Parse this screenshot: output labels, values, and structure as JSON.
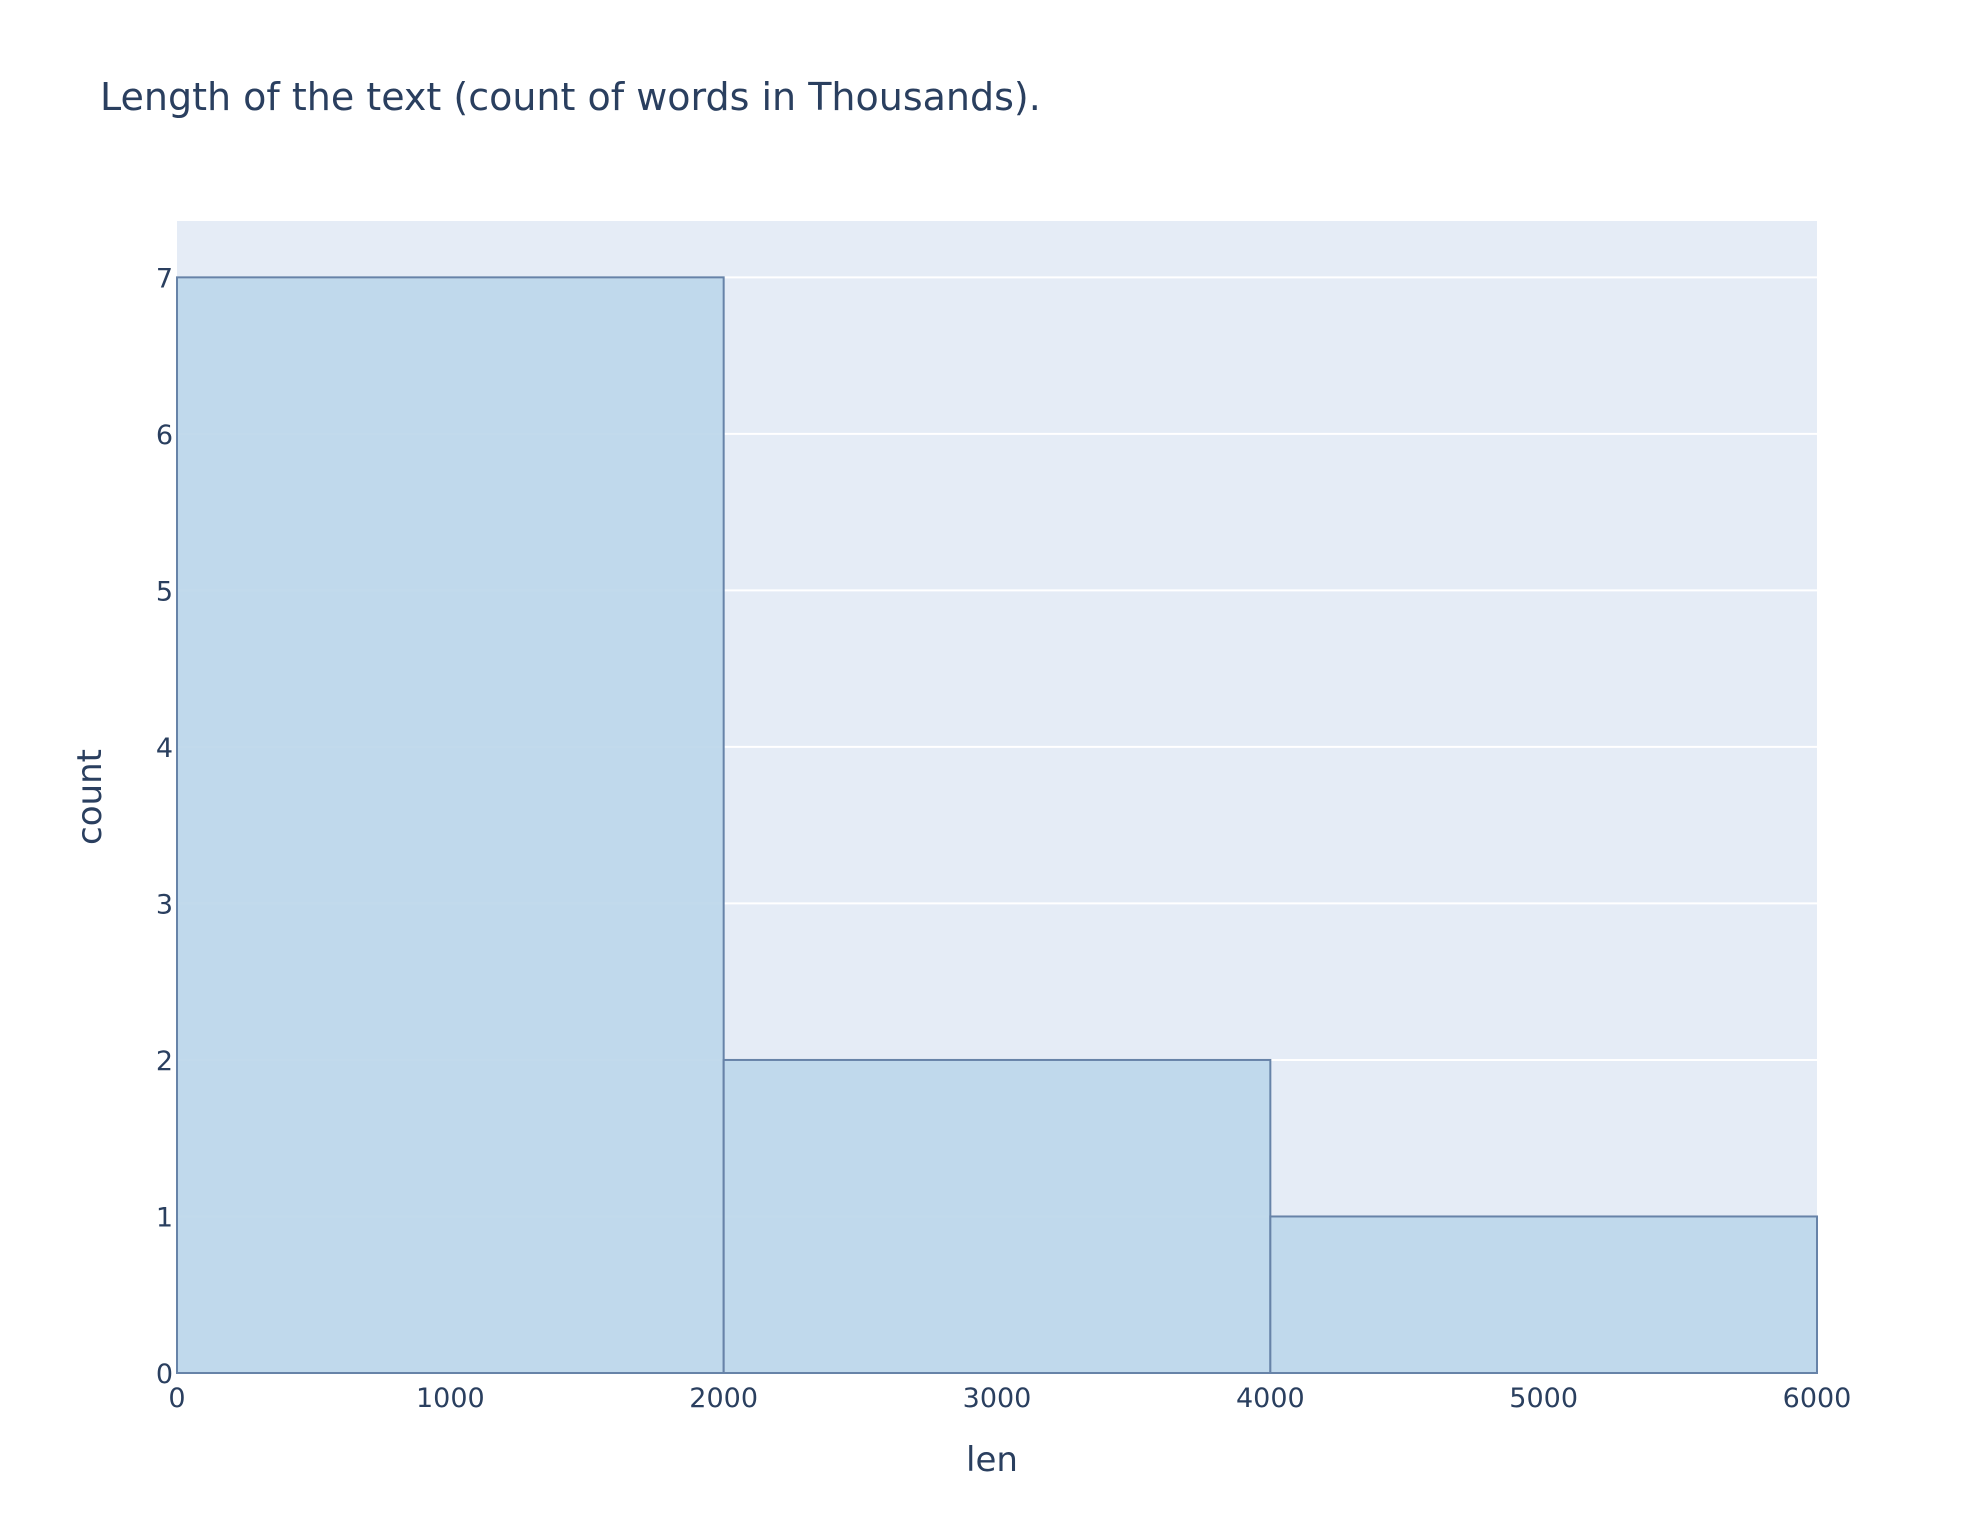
{
  "chart_data": {
    "type": "bar",
    "title": "Length of the text (count of words in Thousands).",
    "xlabel": "len",
    "ylabel": "count",
    "bins": [
      {
        "start": 0,
        "end": 2000,
        "count": 7
      },
      {
        "start": 2000,
        "end": 4000,
        "count": 2
      },
      {
        "start": 4000,
        "end": 6000,
        "count": 1
      }
    ],
    "xlim": [
      0,
      6000
    ],
    "ylim": [
      0,
      7.36
    ],
    "x_ticks": [
      0,
      1000,
      2000,
      3000,
      4000,
      5000,
      6000
    ],
    "y_ticks": [
      0,
      1,
      2,
      3,
      4,
      5,
      6,
      7
    ],
    "grid": true,
    "colors": {
      "plot_background": "#e5ecf6",
      "bar_fill": "#bdd7ea",
      "bar_outline": "#6783a8",
      "grid": "#ffffff",
      "text": "#2a3f5f"
    }
  }
}
